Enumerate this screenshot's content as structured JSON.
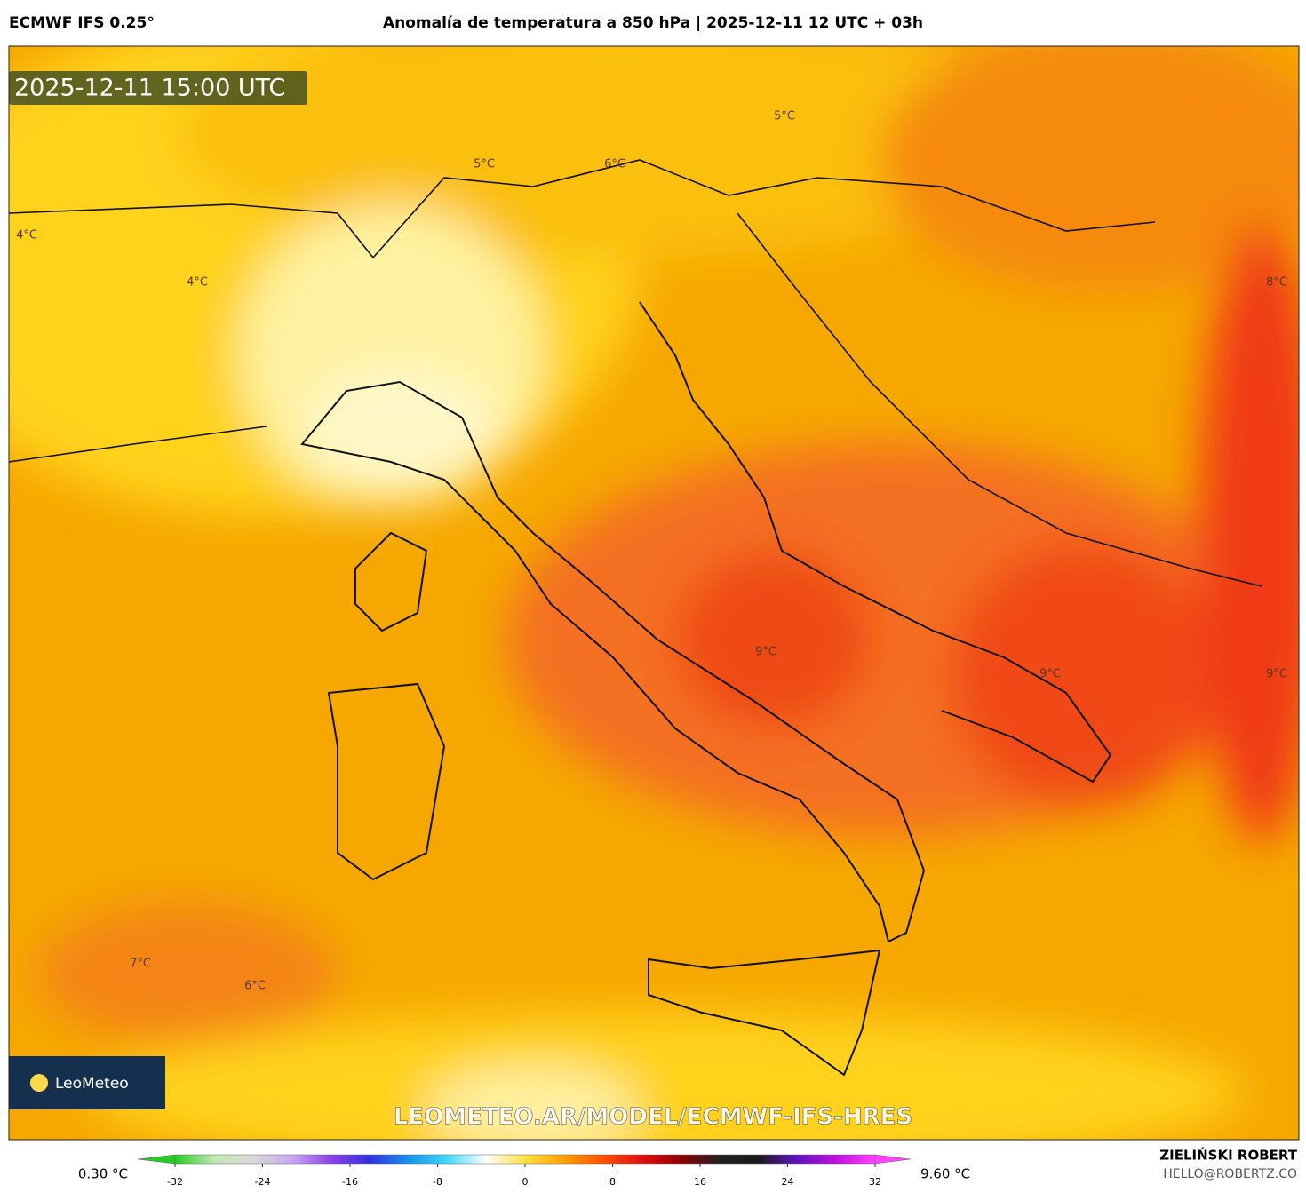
{
  "header": {
    "model": "ECMWF IFS 0.25°",
    "title": "Anomalía de temperatura a 850 hPa | 2025-12-11 12 UTC + 03h"
  },
  "map": {
    "timestamp": "2025-12-11 15:00 UTC",
    "watermark": "LEOMETEO.AR/MODEL/ECMWF-IFS-HRES",
    "logo": "LeoMeteo",
    "contour_labels": [
      "5°C",
      "5°C",
      "6°C",
      "4°C",
      "4°C",
      "8°C",
      "9°C",
      "9°C",
      "9°C",
      "7°C",
      "6°C"
    ]
  },
  "colorbar": {
    "min_label": "0.30 °C",
    "max_label": "9.60 °C",
    "lim": [
      -32,
      32
    ],
    "ticks": [
      -32,
      -24,
      -16,
      -8,
      0,
      8,
      16,
      24,
      32
    ],
    "colors": [
      "#22cc22",
      "#bfe8b0",
      "#d8d8d8",
      "#c8a8f0",
      "#9040e8",
      "#3030e0",
      "#1890f0",
      "#40d8f8",
      "#ffffff",
      "#ffe040",
      "#ffa000",
      "#ff5000",
      "#e01010",
      "#900000",
      "#202020",
      "#1a1a1a",
      "#6010c0",
      "#c010e0",
      "#ff40ff"
    ]
  },
  "credit": {
    "author": "ZIELIŃSKI ROBERT",
    "email": "HELLO@ROBERTZ.CO"
  }
}
